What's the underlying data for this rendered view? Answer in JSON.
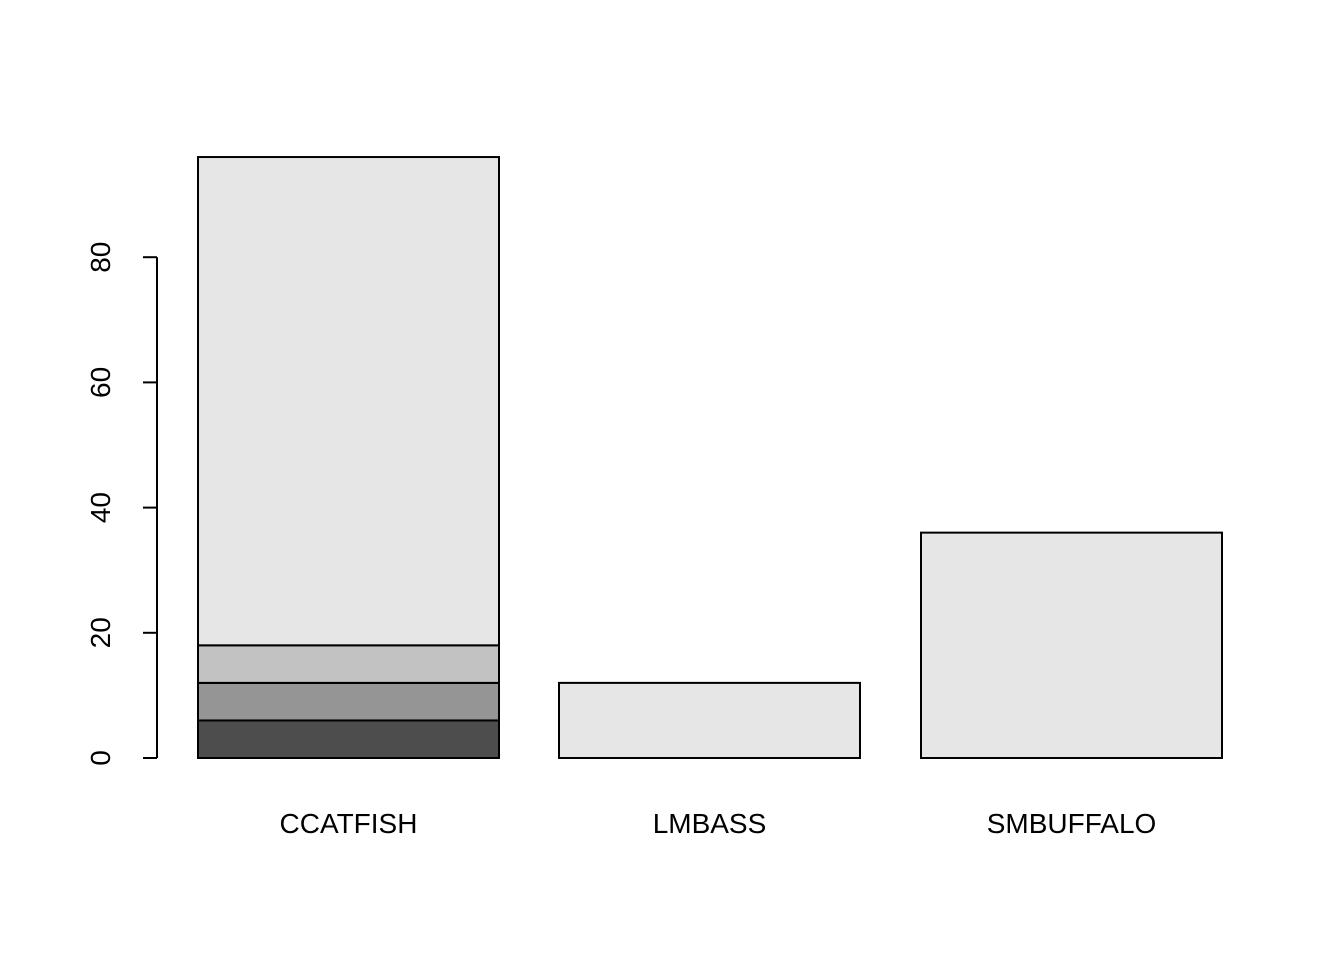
{
  "chart_data": {
    "type": "bar",
    "stacked": true,
    "categories": [
      "CCATFISH",
      "LMBASS",
      "SMBUFFALO"
    ],
    "series": [
      {
        "values": [
          6,
          0,
          0
        ],
        "color": "#4d4d4d"
      },
      {
        "values": [
          6,
          0,
          0
        ],
        "color": "#959595"
      },
      {
        "values": [
          6,
          0,
          0
        ],
        "color": "#c2c2c2"
      },
      {
        "values": [
          78,
          12,
          36
        ],
        "color": "#e6e6e6"
      }
    ],
    "y_ticks": [
      0,
      20,
      40,
      60,
      80
    ],
    "ylim": [
      0,
      96
    ],
    "title": "",
    "xlabel": "",
    "ylabel": "",
    "grid": false,
    "legend": "none"
  }
}
